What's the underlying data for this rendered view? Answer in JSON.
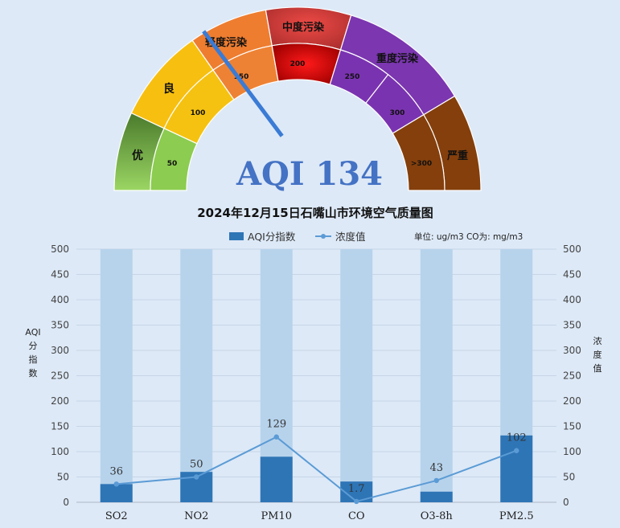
{
  "gauge": {
    "aqi_label": "AQI 134",
    "aqi_value": 134,
    "outer_bands": [
      {
        "label": "优",
        "color_start": "#4a7a2c",
        "color_end": "#8dc655"
      },
      {
        "label": "良",
        "color": "#f7bf10"
      },
      {
        "label": "轻度污染",
        "color": "#ee7d30"
      },
      {
        "label": "中度污染",
        "color_start": "#e9423e",
        "color_end": "#9c2b2b"
      },
      {
        "label": "重度污染",
        "color": "#7b36b0"
      },
      {
        "label": "严重",
        "color": "#843f0c"
      }
    ],
    "inner_bands": [
      {
        "label": "50",
        "color": "#8ccc50"
      },
      {
        "label": "100",
        "color": "#f5c211"
      },
      {
        "label": "150",
        "color": "#ee8234"
      },
      {
        "label": "200",
        "color": "#d60000"
      },
      {
        "label": "250",
        "color": "#7a33b0"
      },
      {
        "label": "300",
        "color": "#7a33b0"
      },
      {
        "label": ">300",
        "color": "#843f0c"
      }
    ]
  },
  "chart_title": "2024年12月15日石嘴山市环境空气质量图",
  "legend": {
    "bar_label": "AQI分指数",
    "line_label": "浓度值",
    "unit_note": "单位: ug/m3  CO为: mg/m3"
  },
  "chart_data": {
    "type": "bar",
    "title": "2024年12月15日石嘴山市环境空气质量图",
    "categories": [
      "SO2",
      "NO2",
      "PM10",
      "CO",
      "O3-8h",
      "PM2.5"
    ],
    "ylabel": "AQI分指数",
    "y2label": "浓度值",
    "ylim": [
      0,
      500
    ],
    "y2lim": [
      0,
      500
    ],
    "yticks": [
      0,
      50,
      100,
      150,
      200,
      250,
      300,
      350,
      400,
      450,
      500
    ],
    "background_bar_value": 500,
    "series": [
      {
        "name": "AQI分指数",
        "type": "bar",
        "color": "#2e75b6",
        "values": [
          36,
          60,
          90,
          41,
          21,
          132
        ]
      },
      {
        "name": "浓度值",
        "type": "line",
        "color": "#5b9bd5",
        "values": [
          36,
          50,
          129,
          1.7,
          43,
          102
        ],
        "labels": [
          "36",
          "50",
          "129",
          "1.7",
          "43",
          "102"
        ]
      }
    ],
    "grid": true,
    "legend_position": "top"
  },
  "colors": {
    "background": "#dde9f7",
    "bg_bar": "#b7d3ec",
    "bar": "#2e75b6",
    "line": "#5b9bd5",
    "aqi_text": "#4472c4",
    "needle": "#3a7bd5"
  }
}
